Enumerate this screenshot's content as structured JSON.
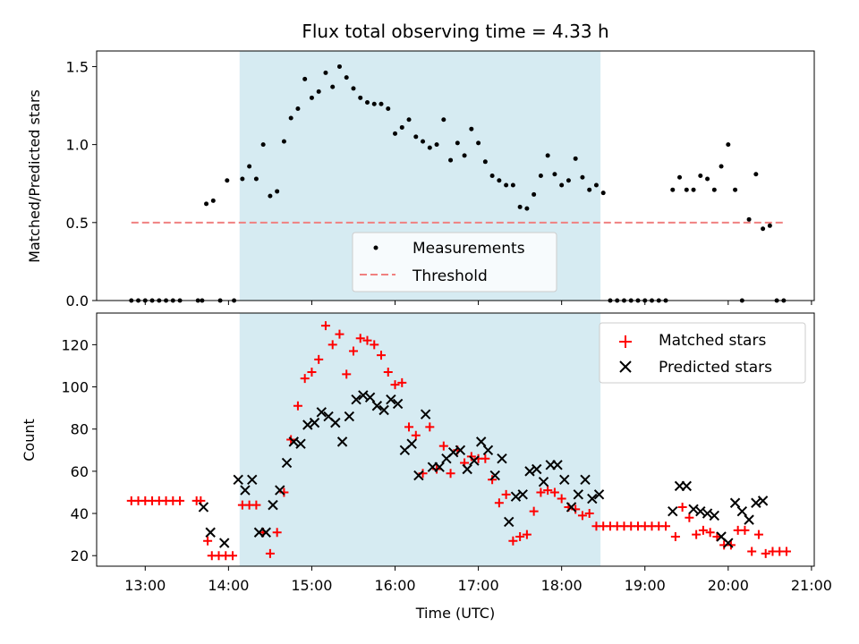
{
  "chart_data": [
    {
      "type": "scatter",
      "title": "Flux total observing time = 4.33 h",
      "xlabel": "",
      "ylabel": "Matched/Predicted stars",
      "ylim": [
        0,
        1.6
      ],
      "yticks": [
        "0.0",
        "0.5",
        "1.0",
        "1.5"
      ],
      "xlim": [
        "12:25",
        "21:02"
      ],
      "legend": "lower-center",
      "shaded_window": [
        "14:08",
        "18:28"
      ],
      "threshold": {
        "name": "Threshold",
        "value": 0.5,
        "x_range": [
          "12:50",
          "20:40"
        ],
        "color": "#f08080"
      },
      "series": [
        {
          "name": "Measurements",
          "color": "#000000",
          "points": [
            [
              "12:50",
              0
            ],
            [
              "12:55",
              0
            ],
            [
              "13:00",
              0
            ],
            [
              "13:05",
              0
            ],
            [
              "13:10",
              0
            ],
            [
              "13:15",
              0
            ],
            [
              "13:20",
              0
            ],
            [
              "13:25",
              0
            ],
            [
              "13:38",
              0
            ],
            [
              "13:41",
              0
            ],
            [
              "13:44",
              0.62
            ],
            [
              "13:49",
              0.64
            ],
            [
              "13:54",
              0
            ],
            [
              "13:59",
              0.77
            ],
            [
              "14:04",
              0
            ],
            [
              "14:10",
              0.78
            ],
            [
              "14:15",
              0.86
            ],
            [
              "14:20",
              0.78
            ],
            [
              "14:25",
              1.0
            ],
            [
              "14:30",
              0.67
            ],
            [
              "14:35",
              0.7
            ],
            [
              "14:40",
              1.02
            ],
            [
              "14:45",
              1.17
            ],
            [
              "14:50",
              1.23
            ],
            [
              "14:55",
              1.42
            ],
            [
              "15:00",
              1.3
            ],
            [
              "15:05",
              1.34
            ],
            [
              "15:10",
              1.46
            ],
            [
              "15:15",
              1.37
            ],
            [
              "15:20",
              1.5
            ],
            [
              "15:25",
              1.43
            ],
            [
              "15:30",
              1.36
            ],
            [
              "15:35",
              1.3
            ],
            [
              "15:40",
              1.27
            ],
            [
              "15:45",
              1.26
            ],
            [
              "15:50",
              1.26
            ],
            [
              "15:55",
              1.23
            ],
            [
              "16:00",
              1.07
            ],
            [
              "16:05",
              1.11
            ],
            [
              "16:10",
              1.16
            ],
            [
              "16:15",
              1.05
            ],
            [
              "16:20",
              1.02
            ],
            [
              "16:25",
              0.98
            ],
            [
              "16:30",
              1.0
            ],
            [
              "16:35",
              1.16
            ],
            [
              "16:40",
              0.9
            ],
            [
              "16:45",
              1.01
            ],
            [
              "16:50",
              0.93
            ],
            [
              "16:55",
              1.1
            ],
            [
              "17:00",
              1.01
            ],
            [
              "17:05",
              0.89
            ],
            [
              "17:10",
              0.8
            ],
            [
              "17:15",
              0.77
            ],
            [
              "17:20",
              0.74
            ],
            [
              "17:25",
              0.74
            ],
            [
              "17:30",
              0.6
            ],
            [
              "17:35",
              0.59
            ],
            [
              "17:40",
              0.68
            ],
            [
              "17:45",
              0.8
            ],
            [
              "17:50",
              0.93
            ],
            [
              "17:55",
              0.81
            ],
            [
              "18:00",
              0.74
            ],
            [
              "18:05",
              0.77
            ],
            [
              "18:10",
              0.91
            ],
            [
              "18:15",
              0.79
            ],
            [
              "18:20",
              0.71
            ],
            [
              "18:25",
              0.74
            ],
            [
              "18:30",
              0.69
            ],
            [
              "18:35",
              0
            ],
            [
              "18:40",
              0
            ],
            [
              "18:45",
              0
            ],
            [
              "18:50",
              0
            ],
            [
              "18:55",
              0
            ],
            [
              "19:00",
              0
            ],
            [
              "19:05",
              0
            ],
            [
              "19:10",
              0
            ],
            [
              "19:15",
              0
            ],
            [
              "19:20",
              0.71
            ],
            [
              "19:25",
              0.79
            ],
            [
              "19:30",
              0.71
            ],
            [
              "19:35",
              0.71
            ],
            [
              "19:40",
              0.8
            ],
            [
              "19:45",
              0.78
            ],
            [
              "19:50",
              0.71
            ],
            [
              "19:55",
              0.86
            ],
            [
              "20:00",
              1.0
            ],
            [
              "20:05",
              0.71
            ],
            [
              "20:10",
              0
            ],
            [
              "20:15",
              0.52
            ],
            [
              "20:20",
              0.81
            ],
            [
              "20:25",
              0.46
            ],
            [
              "20:30",
              0.48
            ],
            [
              "20:35",
              0
            ],
            [
              "20:40",
              0
            ]
          ]
        }
      ]
    },
    {
      "type": "scatter",
      "title": "",
      "xlabel": "Time (UTC)",
      "ylabel": "Count",
      "ylim": [
        15,
        135
      ],
      "yticks": [
        "20",
        "40",
        "60",
        "80",
        "100",
        "120"
      ],
      "xticks": [
        "13:00",
        "14:00",
        "15:00",
        "16:00",
        "17:00",
        "18:00",
        "19:00",
        "20:00",
        "21:00"
      ],
      "xlim": [
        "12:25",
        "21:02"
      ],
      "legend": "top-right",
      "shaded_window": [
        "14:08",
        "18:28"
      ],
      "series": [
        {
          "name": "Matched stars",
          "marker": "plus",
          "color": "#ff0000",
          "points": [
            [
              "12:50",
              46
            ],
            [
              "12:55",
              46
            ],
            [
              "13:00",
              46
            ],
            [
              "13:05",
              46
            ],
            [
              "13:10",
              46
            ],
            [
              "13:15",
              46
            ],
            [
              "13:20",
              46
            ],
            [
              "13:25",
              46
            ],
            [
              "13:37",
              46
            ],
            [
              "13:40",
              46
            ],
            [
              "13:45",
              27
            ],
            [
              "13:48",
              20
            ],
            [
              "13:53",
              20
            ],
            [
              "13:58",
              20
            ],
            [
              "14:03",
              20
            ],
            [
              "14:10",
              44
            ],
            [
              "14:15",
              44
            ],
            [
              "14:20",
              44
            ],
            [
              "14:25",
              31
            ],
            [
              "14:30",
              21
            ],
            [
              "14:35",
              31
            ],
            [
              "14:40",
              50
            ],
            [
              "14:45",
              75
            ],
            [
              "14:50",
              91
            ],
            [
              "14:55",
              104
            ],
            [
              "15:00",
              107
            ],
            [
              "15:05",
              113
            ],
            [
              "15:10",
              129
            ],
            [
              "15:15",
              120
            ],
            [
              "15:20",
              125
            ],
            [
              "15:25",
              106
            ],
            [
              "15:30",
              117
            ],
            [
              "15:35",
              123
            ],
            [
              "15:40",
              122
            ],
            [
              "15:45",
              120
            ],
            [
              "15:50",
              115
            ],
            [
              "15:55",
              107
            ],
            [
              "16:00",
              101
            ],
            [
              "16:05",
              102
            ],
            [
              "16:10",
              81
            ],
            [
              "16:15",
              77
            ],
            [
              "16:20",
              59
            ],
            [
              "16:25",
              81
            ],
            [
              "16:30",
              61
            ],
            [
              "16:35",
              72
            ],
            [
              "16:40",
              59
            ],
            [
              "16:45",
              70
            ],
            [
              "16:50",
              64
            ],
            [
              "16:55",
              67
            ],
            [
              "17:00",
              66
            ],
            [
              "17:05",
              66
            ],
            [
              "17:10",
              56
            ],
            [
              "17:15",
              45
            ],
            [
              "17:20",
              49
            ],
            [
              "17:25",
              27
            ],
            [
              "17:30",
              29
            ],
            [
              "17:35",
              30
            ],
            [
              "17:40",
              41
            ],
            [
              "17:45",
              50
            ],
            [
              "17:50",
              51
            ],
            [
              "17:55",
              50
            ],
            [
              "18:00",
              47
            ],
            [
              "18:05",
              43
            ],
            [
              "18:10",
              42
            ],
            [
              "18:15",
              39
            ],
            [
              "18:20",
              40
            ],
            [
              "18:25",
              34
            ],
            [
              "18:30",
              34
            ],
            [
              "18:35",
              34
            ],
            [
              "18:40",
              34
            ],
            [
              "18:45",
              34
            ],
            [
              "18:50",
              34
            ],
            [
              "18:55",
              34
            ],
            [
              "19:00",
              34
            ],
            [
              "19:05",
              34
            ],
            [
              "19:10",
              34
            ],
            [
              "19:15",
              34
            ],
            [
              "19:22",
              29
            ],
            [
              "19:27",
              43
            ],
            [
              "19:32",
              38
            ],
            [
              "19:37",
              30
            ],
            [
              "19:42",
              32
            ],
            [
              "19:47",
              31
            ],
            [
              "19:52",
              29
            ],
            [
              "19:57",
              25
            ],
            [
              "20:02",
              25
            ],
            [
              "20:07",
              32
            ],
            [
              "20:12",
              32
            ],
            [
              "20:17",
              22
            ],
            [
              "20:22",
              30
            ],
            [
              "20:27",
              21
            ],
            [
              "20:32",
              22
            ],
            [
              "20:37",
              22
            ],
            [
              "20:42",
              22
            ]
          ]
        },
        {
          "name": "Predicted stars",
          "marker": "x",
          "color": "#000000",
          "points": [
            [
              "13:42",
              43
            ],
            [
              "13:47",
              31
            ],
            [
              "13:57",
              26
            ],
            [
              "14:07",
              56
            ],
            [
              "14:12",
              51
            ],
            [
              "14:17",
              56
            ],
            [
              "14:22",
              31
            ],
            [
              "14:27",
              31
            ],
            [
              "14:32",
              44
            ],
            [
              "14:37",
              51
            ],
            [
              "14:42",
              64
            ],
            [
              "14:47",
              74
            ],
            [
              "14:52",
              73
            ],
            [
              "14:57",
              82
            ],
            [
              "15:02",
              83
            ],
            [
              "15:07",
              88
            ],
            [
              "15:12",
              86
            ],
            [
              "15:17",
              83
            ],
            [
              "15:22",
              74
            ],
            [
              "15:27",
              86
            ],
            [
              "15:32",
              94
            ],
            [
              "15:37",
              96
            ],
            [
              "15:42",
              95
            ],
            [
              "15:47",
              91
            ],
            [
              "15:52",
              89
            ],
            [
              "15:57",
              94
            ],
            [
              "16:02",
              92
            ],
            [
              "16:07",
              70
            ],
            [
              "16:12",
              73
            ],
            [
              "16:17",
              58
            ],
            [
              "16:22",
              87
            ],
            [
              "16:27",
              62
            ],
            [
              "16:32",
              62
            ],
            [
              "16:37",
              66
            ],
            [
              "16:42",
              69
            ],
            [
              "16:47",
              70
            ],
            [
              "16:52",
              61
            ],
            [
              "16:57",
              65
            ],
            [
              "17:02",
              74
            ],
            [
              "17:07",
              70
            ],
            [
              "17:12",
              58
            ],
            [
              "17:17",
              66
            ],
            [
              "17:22",
              36
            ],
            [
              "17:27",
              48
            ],
            [
              "17:32",
              49
            ],
            [
              "17:37",
              60
            ],
            [
              "17:42",
              61
            ],
            [
              "17:47",
              55
            ],
            [
              "17:52",
              63
            ],
            [
              "17:57",
              63
            ],
            [
              "18:02",
              56
            ],
            [
              "18:07",
              43
            ],
            [
              "18:12",
              49
            ],
            [
              "18:17",
              56
            ],
            [
              "18:22",
              47
            ],
            [
              "18:27",
              49
            ],
            [
              "19:20",
              41
            ],
            [
              "19:25",
              53
            ],
            [
              "19:30",
              53
            ],
            [
              "19:35",
              42
            ],
            [
              "19:40",
              41
            ],
            [
              "19:45",
              40
            ],
            [
              "19:50",
              39
            ],
            [
              "19:55",
              29
            ],
            [
              "20:00",
              26
            ],
            [
              "20:05",
              45
            ],
            [
              "20:10",
              41
            ],
            [
              "20:15",
              37
            ],
            [
              "20:20",
              45
            ],
            [
              "20:25",
              46
            ]
          ]
        }
      ]
    }
  ]
}
